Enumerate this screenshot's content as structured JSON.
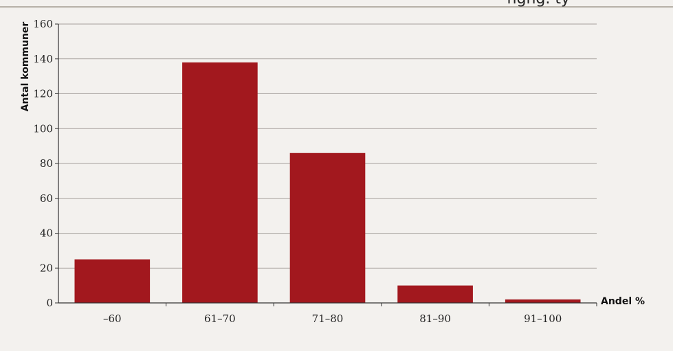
{
  "header": {
    "title_fragment": "ngng. ty"
  },
  "chart_data": {
    "type": "bar",
    "categories": [
      "–60",
      "61–70",
      "71–80",
      "81–90",
      "91–100"
    ],
    "values": [
      25,
      138,
      86,
      10,
      2
    ],
    "xlabel": "Andel %",
    "ylabel": "Antal kommuner",
    "ylim": [
      0,
      160
    ],
    "yticks": [
      0,
      20,
      40,
      60,
      80,
      100,
      120,
      140,
      160
    ],
    "ytick_labels": [
      "0",
      "20",
      "40",
      "60",
      "80",
      "100",
      "120",
      "140",
      "160"
    ],
    "grid": true,
    "bar_color": "#a2181e"
  }
}
